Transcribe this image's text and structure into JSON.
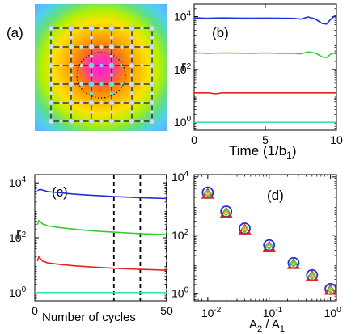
{
  "chart_data": [
    {
      "panel": "a",
      "type": "heatmap",
      "label": "(a)",
      "description_grid": {
        "rows": 6,
        "cols": 6
      },
      "colors": {
        "center": "#ff2bd0",
        "mid": "#ffb000",
        "outer": "#7fd0ff",
        "grid": "#1a1a1a",
        "node": "#c9dff0",
        "inner_node": "#6fd8e6"
      }
    },
    {
      "panel": "b",
      "type": "line",
      "label": "(b)",
      "xlabel": "Time (1/b",
      "xlabel_sub": "1",
      "xlabel_end": ")",
      "ylabel": "r",
      "xlim": [
        0,
        10
      ],
      "ylim": [
        0.5,
        30000
      ],
      "yscale": "log",
      "xticks": [
        0,
        5,
        10
      ],
      "yticks": [
        {
          "v": 1,
          "base": "10",
          "exp": "0"
        },
        {
          "v": 100,
          "base": "10",
          "exp": "2"
        },
        {
          "v": 10000,
          "base": "10",
          "exp": "4"
        }
      ],
      "series": [
        {
          "color": "#1f2fd6",
          "x": [
            0,
            1,
            2,
            3,
            4,
            5,
            6,
            7,
            7.5,
            8,
            8.5,
            9,
            9.3,
            9.6,
            10
          ],
          "y": [
            9000,
            8700,
            8900,
            8800,
            8700,
            8800,
            8700,
            8600,
            8000,
            9700,
            8200,
            5500,
            5200,
            8000,
            12000
          ]
        },
        {
          "color": "#2fcf2f",
          "x": [
            0,
            1,
            2,
            3,
            4,
            5,
            6,
            7,
            7.5,
            8,
            8.5,
            9,
            9.3,
            9.6,
            10
          ],
          "y": [
            420,
            410,
            420,
            415,
            410,
            420,
            410,
            410,
            390,
            460,
            420,
            300,
            280,
            380,
            450
          ]
        },
        {
          "color": "#e52222",
          "x": [
            0,
            1,
            1.5,
            2,
            3,
            4,
            5,
            6,
            7,
            8,
            9,
            10
          ],
          "y": [
            13,
            13,
            12,
            13,
            13,
            13,
            13,
            13,
            13,
            13,
            13,
            13
          ]
        },
        {
          "color": "#3fe0b0",
          "x": [
            0,
            10
          ],
          "y": [
            1,
            1
          ]
        }
      ]
    },
    {
      "panel": "c",
      "type": "line",
      "label": "(c)",
      "xlabel": "Number of cycles",
      "ylabel": "r",
      "xlim": [
        0,
        50
      ],
      "ylim": [
        0.5,
        20000
      ],
      "yscale": "log",
      "xticks": [
        0,
        50
      ],
      "yticks": [
        {
          "v": 1,
          "base": "10",
          "exp": "0"
        },
        {
          "v": 100,
          "base": "10",
          "exp": "2"
        },
        {
          "v": 10000,
          "base": "10",
          "exp": "4"
        }
      ],
      "vlines": [
        30,
        40,
        50
      ],
      "series": [
        {
          "color": "#1f2fd6",
          "x": [
            1,
            2,
            5,
            10,
            15,
            20,
            25,
            30,
            35,
            40,
            45,
            50
          ],
          "y": [
            5200,
            5800,
            4800,
            4300,
            3900,
            3600,
            3400,
            3200,
            3050,
            2900,
            2800,
            2700
          ]
        },
        {
          "color": "#2fcf2f",
          "x": [
            1,
            1.5,
            3,
            5,
            10,
            15,
            20,
            25,
            30,
            35,
            40,
            45,
            50
          ],
          "y": [
            300,
            420,
            320,
            270,
            230,
            205,
            185,
            170,
            160,
            150,
            140,
            135,
            130
          ]
        },
        {
          "color": "#e52222",
          "x": [
            1,
            1.5,
            3,
            5,
            10,
            15,
            20,
            25,
            30,
            35,
            40,
            45,
            50
          ],
          "y": [
            14,
            20,
            14,
            12,
            10.5,
            9.5,
            8.8,
            8.2,
            7.7,
            7.3,
            7,
            6.8,
            6.5
          ]
        },
        {
          "color": "#3fe0b0",
          "x": [
            0,
            50
          ],
          "y": [
            1,
            1
          ]
        }
      ]
    },
    {
      "panel": "d",
      "type": "scatter",
      "label": "(d)",
      "xlabel": "A",
      "xlabel_sub1": "2",
      "xlabel_mid": " / A",
      "xlabel_sub2": "1",
      "ylabel": "",
      "xscale": "log",
      "yscale": "log",
      "xlim": [
        0.006,
        1.25
      ],
      "ylim": [
        0.55,
        12000
      ],
      "xticks": [
        {
          "v": 0.01,
          "base": "10",
          "exp": "-2"
        },
        {
          "v": 0.1,
          "base": "10",
          "exp": "-1"
        },
        {
          "v": 1,
          "base": "10",
          "exp": "0"
        }
      ],
      "yticks": [
        {
          "v": 1,
          "base": "10",
          "exp": "0"
        },
        {
          "v": 100,
          "base": "10",
          "exp": "2"
        },
        {
          "v": 10000,
          "base": "10",
          "exp": "4"
        }
      ],
      "x": [
        0.01,
        0.02,
        0.04,
        0.1,
        0.25,
        0.5,
        1.0
      ],
      "series": [
        {
          "marker": "circle",
          "color": "#1f2fd6",
          "y": [
            2900,
            650,
            170,
            45,
            11,
            4.2,
            1.4
          ]
        },
        {
          "marker": "triangle",
          "color": "#e52222",
          "y": [
            2600,
            580,
            155,
            40,
            10,
            3.9,
            1.3
          ]
        },
        {
          "marker": "diamond",
          "color": "#2fcf2f",
          "y": [
            2750,
            620,
            162,
            43,
            10.5,
            4.0,
            1.35
          ]
        },
        {
          "marker": "plus",
          "color": "#ff9a2a",
          "y": [
            2800,
            630,
            165,
            44,
            10.8,
            4.1,
            1.38
          ]
        }
      ]
    }
  ]
}
